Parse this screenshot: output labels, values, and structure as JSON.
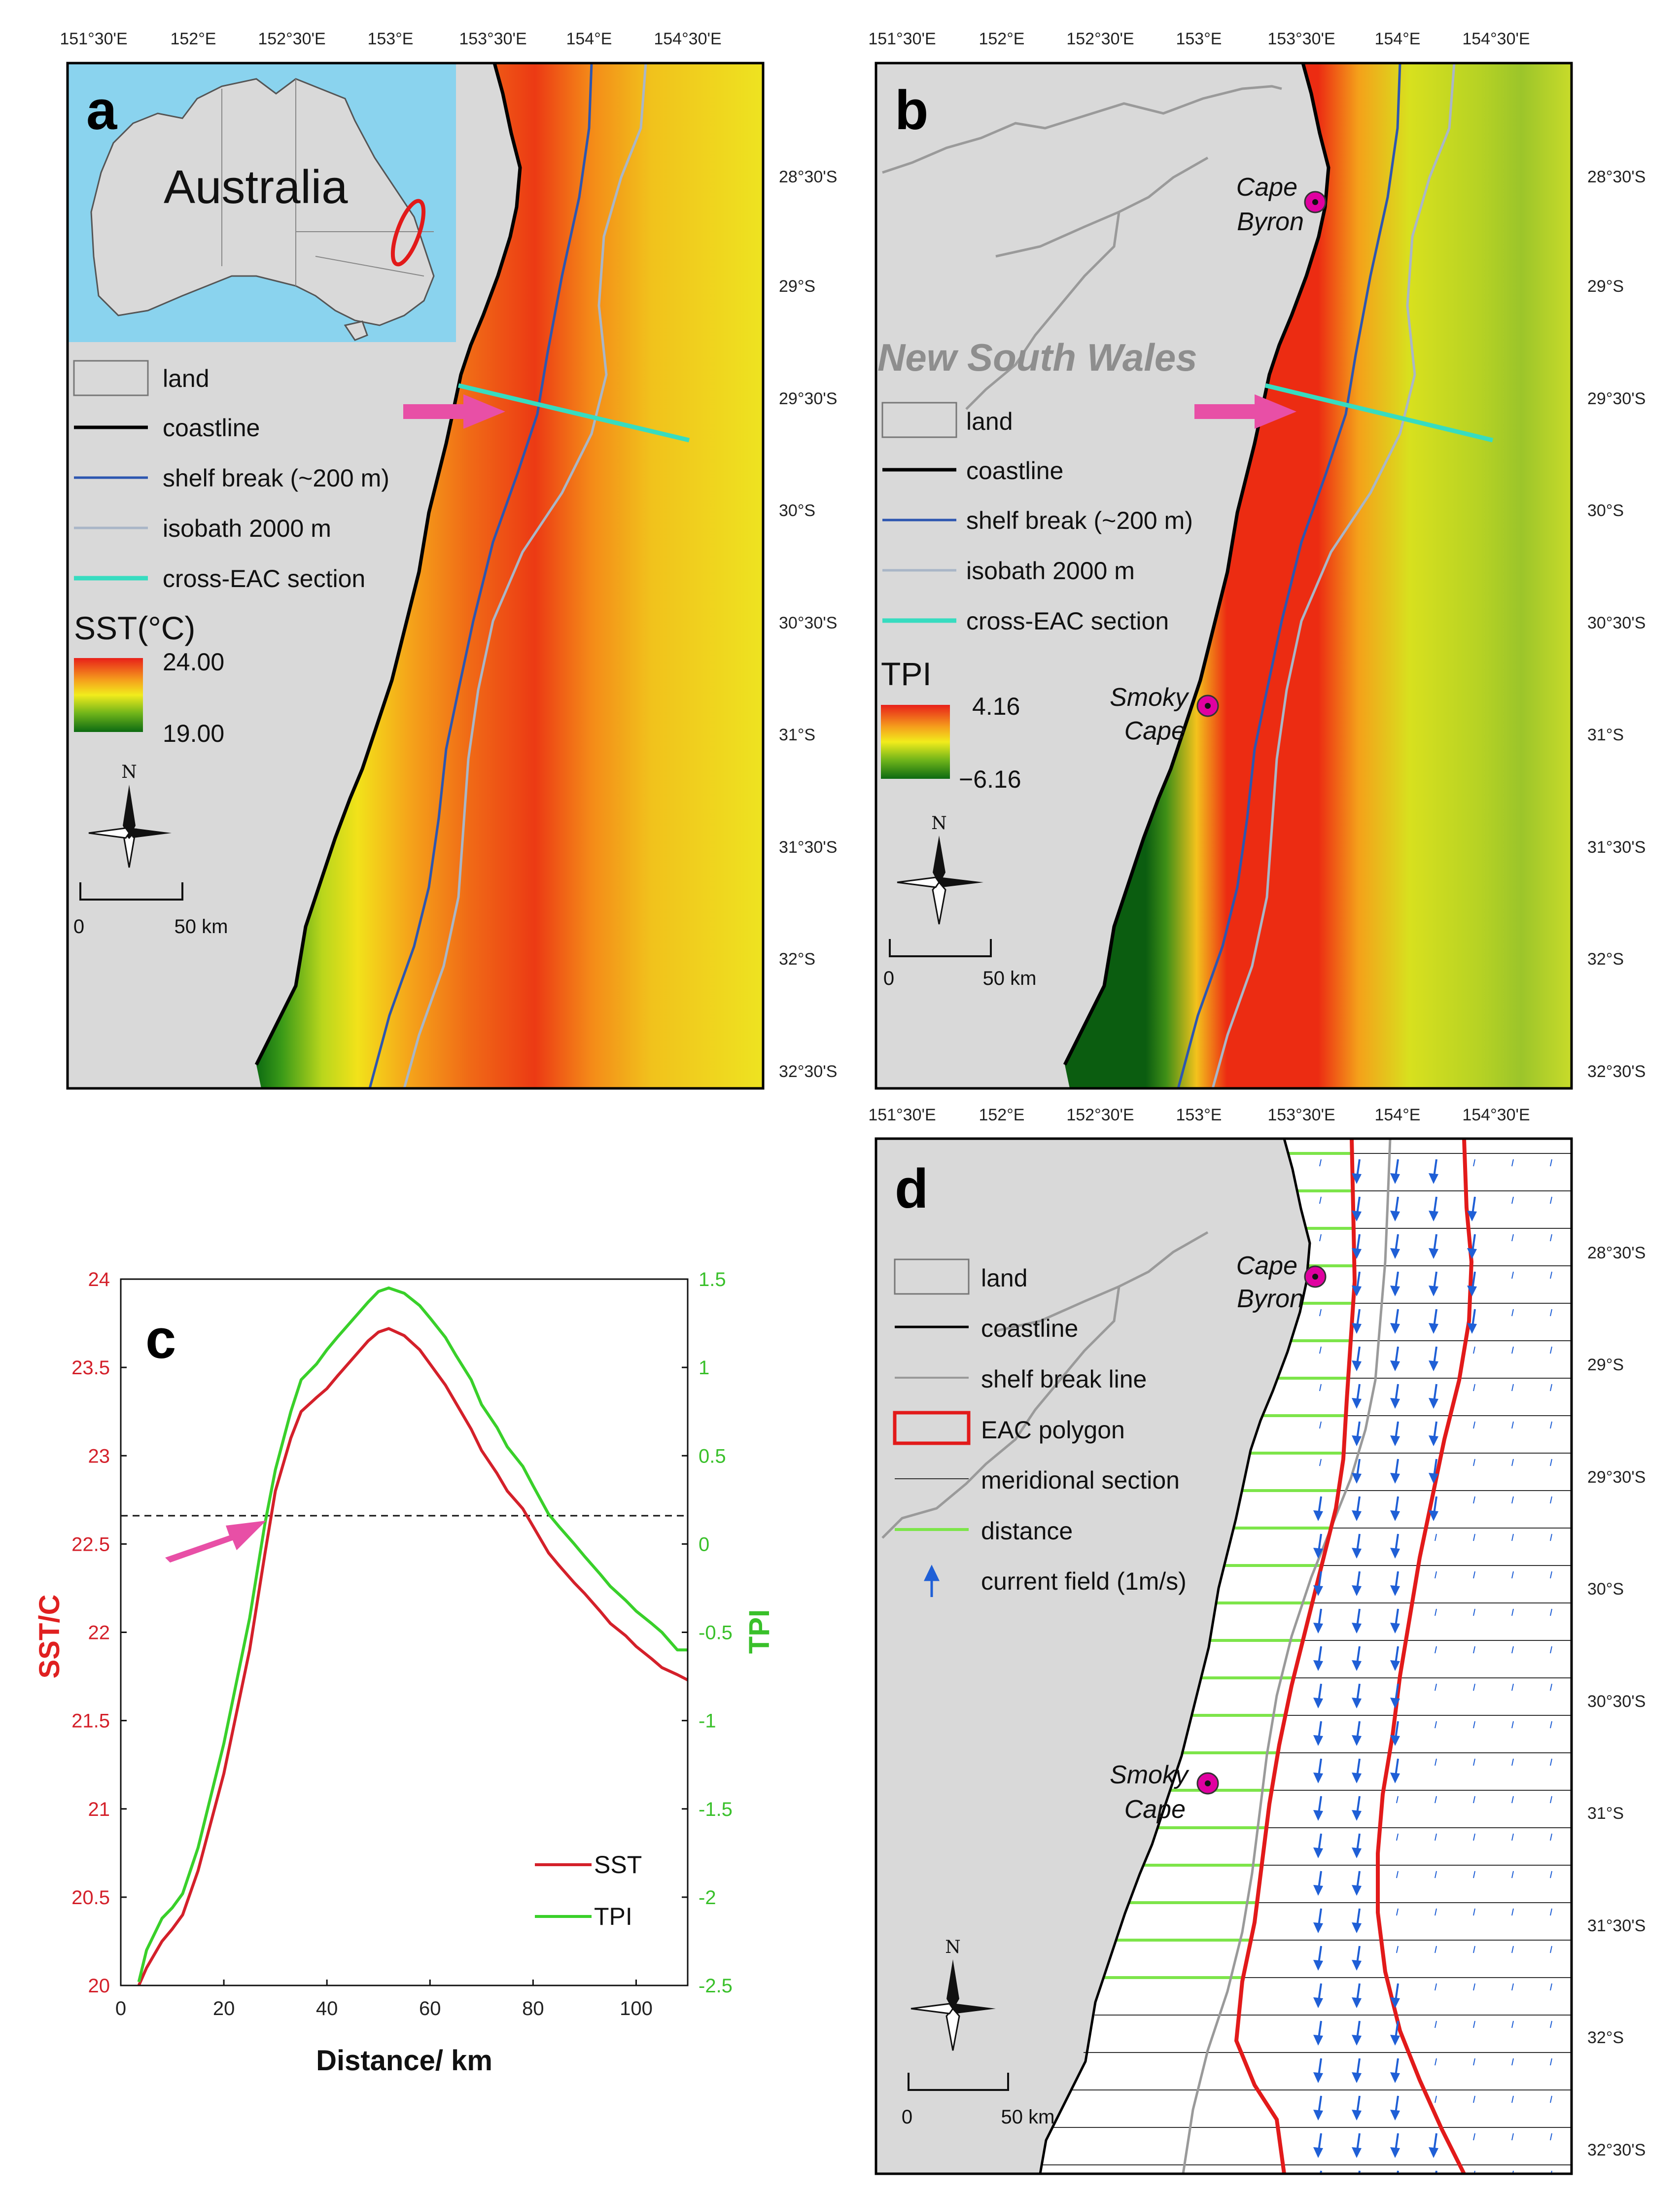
{
  "colors": {
    "land": "#d9d9d9",
    "inset_ocean": "#8ad3ee",
    "shelf_break": "#2d56b0",
    "isobath": "#a9b6c7",
    "cross_section": "#37dcc0",
    "arrow": "#e84fa6",
    "sst_line": "#d4202a",
    "tpi_line": "#39d02a",
    "eac_polygon": "#e21a1a",
    "distance_line": "#7de54a",
    "current_vector": "#1f5fd6",
    "marker": "#e000a0"
  },
  "map_axes": {
    "lon_ticks": [
      "151°30'E",
      "152°E",
      "152°30'E",
      "153°E",
      "153°30'E",
      "154°E",
      "154°30'E"
    ],
    "lat_ticks": [
      "28°30'S",
      "29°S",
      "29°30'S",
      "30°S",
      "30°30'S",
      "31°S",
      "31°30'S",
      "32°S",
      "32°30'S"
    ]
  },
  "panels": {
    "a": {
      "label": "a",
      "inset_country": "Australia",
      "legend": {
        "land": "land",
        "coastline": "coastline",
        "shelf_break": "shelf break (~200 m)",
        "isobath": "isobath 2000 m",
        "section": "cross-EAC section"
      },
      "colorbar": {
        "title": "SST(°C)",
        "max": "24.00",
        "min": "19.00"
      },
      "north": "N",
      "scale": {
        "zero": "0",
        "end": "50 km"
      }
    },
    "b": {
      "label": "b",
      "region": "New South Wales",
      "places": {
        "cape_byron_1": "Cape",
        "cape_byron_2": "Byron",
        "smoky_1": "Smoky",
        "smoky_2": "Cape"
      },
      "legend": {
        "land": "land",
        "coastline": "coastline",
        "shelf_break": "shelf break (~200 m)",
        "isobath": "isobath 2000 m",
        "section": "cross-EAC section"
      },
      "colorbar": {
        "title": "TPI",
        "max": "4.16",
        "min": "−6.16"
      },
      "north": "N",
      "scale": {
        "zero": "0",
        "end": "50 km"
      }
    },
    "c": {
      "label": "c",
      "threshold_sst": 22.66
    },
    "d": {
      "label": "d",
      "places": {
        "cape_byron_1": "Cape",
        "cape_byron_2": "Byron",
        "smoky_1": "Smoky",
        "smoky_2": "Cape"
      },
      "legend": {
        "land": "land",
        "coastline": "coastline",
        "shelf_break": "shelf break line",
        "polygon": "EAC polygon",
        "meridional": "meridional section",
        "distance": "distance",
        "current": "current field (1m/s)"
      },
      "north": "N",
      "scale": {
        "zero": "0",
        "end": "50 km"
      }
    }
  },
  "chart_data": {
    "type": "line",
    "xlabel": "Distance/ km",
    "ylabel": "SST/C",
    "y2label": "TPI",
    "xlim": [
      0,
      110
    ],
    "ylim": [
      20,
      24
    ],
    "y2lim": [
      -2.5,
      1.5
    ],
    "xticks": [
      "0",
      "20",
      "40",
      "60",
      "80",
      "100"
    ],
    "yticks": [
      "20",
      "20.5",
      "21",
      "21.5",
      "22",
      "22.5",
      "23",
      "23.5",
      "24"
    ],
    "y2ticks": [
      "-2.5",
      "-2",
      "-1.5",
      "-1",
      "-0.5",
      "0",
      "0.5",
      "1",
      "1.5"
    ],
    "legend": [
      "SST",
      "TPI"
    ],
    "x": [
      3.5,
      5,
      8,
      10,
      12,
      15,
      20,
      25,
      28,
      30,
      33,
      35,
      38,
      40,
      42,
      45,
      48,
      50,
      52,
      55,
      58,
      60,
      63,
      65,
      68,
      70,
      73,
      75,
      78,
      80,
      83,
      85,
      88,
      90,
      93,
      95,
      98,
      100,
      103,
      105,
      108,
      110
    ],
    "series": [
      {
        "name": "SST",
        "values": [
          20.0,
          20.1,
          20.25,
          20.32,
          20.4,
          20.65,
          21.2,
          21.9,
          22.45,
          22.8,
          23.1,
          23.25,
          23.33,
          23.38,
          23.45,
          23.55,
          23.65,
          23.7,
          23.72,
          23.68,
          23.6,
          23.52,
          23.4,
          23.3,
          23.15,
          23.03,
          22.9,
          22.8,
          22.7,
          22.6,
          22.45,
          22.38,
          22.28,
          22.22,
          22.12,
          22.05,
          21.98,
          21.92,
          21.85,
          21.8,
          21.76,
          21.73
        ]
      },
      {
        "name": "TPI",
        "values": [
          -2.48,
          -2.3,
          -2.12,
          -2.06,
          -1.98,
          -1.72,
          -1.13,
          -0.42,
          0.12,
          0.42,
          0.75,
          0.93,
          1.02,
          1.1,
          1.17,
          1.27,
          1.37,
          1.43,
          1.45,
          1.42,
          1.35,
          1.28,
          1.17,
          1.07,
          0.93,
          0.79,
          0.66,
          0.55,
          0.44,
          0.33,
          0.17,
          0.1,
          0.0,
          -0.07,
          -0.17,
          -0.24,
          -0.32,
          -0.38,
          -0.45,
          -0.5,
          -0.6,
          -0.6
        ]
      }
    ]
  }
}
